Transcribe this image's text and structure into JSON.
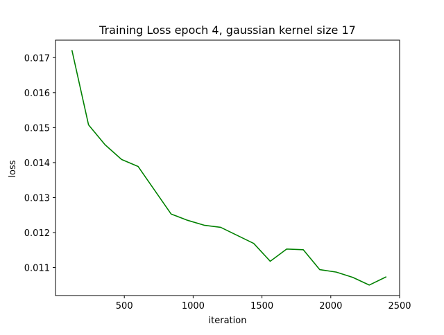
{
  "chart_data": {
    "type": "line",
    "title": "Training Loss epoch 4, gaussian kernel size 17",
    "xlabel": "iteration",
    "ylabel": "loss",
    "xlim": [
      0,
      2500
    ],
    "ylim": [
      0.0102,
      0.0175
    ],
    "xticks": [
      500,
      1000,
      1500,
      2000,
      2500
    ],
    "yticks": [
      0.011,
      0.012,
      0.013,
      0.014,
      0.015,
      0.016,
      0.017
    ],
    "xtick_labels": [
      "500",
      "1000",
      "1500",
      "2000",
      "2500"
    ],
    "ytick_labels": [
      "0.011",
      "0.012",
      "0.013",
      "0.014",
      "0.015",
      "0.016",
      "0.017"
    ],
    "grid": false,
    "series": [
      {
        "color": "#008000",
        "x": [
          120,
          240,
          360,
          480,
          600,
          720,
          840,
          960,
          1080,
          1200,
          1320,
          1440,
          1560,
          1680,
          1800,
          1920,
          2040,
          2160,
          2280,
          2400
        ],
        "y": [
          0.0172,
          0.01508,
          0.01451,
          0.01409,
          0.01389,
          0.01321,
          0.01253,
          0.01235,
          0.01221,
          0.01215,
          0.01192,
          0.01169,
          0.01118,
          0.01153,
          0.01151,
          0.01094,
          0.01087,
          0.01072,
          0.0105,
          0.01073
        ]
      }
    ]
  }
}
